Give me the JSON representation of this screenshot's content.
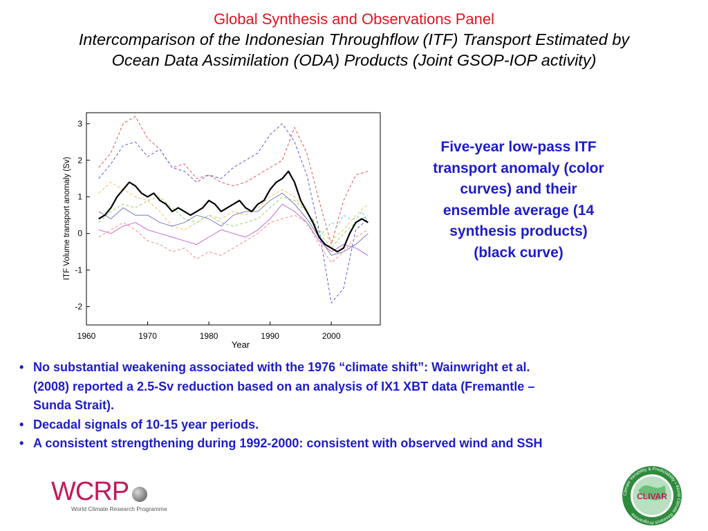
{
  "title": {
    "main": "Global Synthesis and Observations Panel",
    "sub_line1": "Intercomparison of the Indonesian Throughflow (ITF) Transport Estimated by",
    "sub_line2": "Ocean Data Assimilation (ODA) Products (Joint GSOP-IOP activity)"
  },
  "side_caption": "Five-year low-pass ITF transport anomaly (color curves) and their ensemble average (14 synthesis products) (black curve)",
  "bullets": [
    {
      "line1": "No substantial weakening associated with the 1976 “climate shift”: Wainwright et al.",
      "line2": "(2008) reported a 2.5-Sv reduction based on an analysis of IX1 XBT data (Fremantle –",
      "line3": "Sunda Strait)."
    },
    {
      "line1": "Decadal signals of 10-15 year periods."
    },
    {
      "line1": "A consistent strengthening during 1992-2000: consistent with observed wind and SSH"
    }
  ],
  "logos": {
    "wcrp_text": "WCRP",
    "wcrp_caption": "World Climate Research Programme",
    "clivar_text": "CLIVAR",
    "clivar_ring_text": "Climate Variability & Predictability • World Climate Research Programme"
  },
  "colors": {
    "title_red": "#e0141e",
    "body_blue": "#1c1cc8",
    "wcrp_magenta": "#c2185b",
    "clivar_green": "#2e8b3d"
  },
  "chart_data": {
    "type": "line",
    "xlabel": "Year",
    "ylabel": "ITF Volume transport anomaly (Sv)",
    "xlim": [
      1960,
      2008
    ],
    "ylim": [
      -2.5,
      3.3
    ],
    "xticks": [
      1960,
      1970,
      1980,
      1990,
      2000
    ],
    "yticks": [
      -2,
      -1,
      0,
      1,
      2,
      3
    ],
    "grid": false,
    "legend": "none",
    "series": [
      {
        "color": "#000000",
        "style": "solid",
        "width": 2.2,
        "x": [
          1962,
          1963,
          1964,
          1965,
          1966,
          1967,
          1968,
          1969,
          1970,
          1971,
          1972,
          1973,
          1974,
          1975,
          1976,
          1977,
          1978,
          1979,
          1980,
          1981,
          1982,
          1983,
          1984,
          1985,
          1986,
          1987,
          1988,
          1989,
          1990,
          1991,
          1992,
          1993,
          1994,
          1995,
          1996,
          1997,
          1998,
          1999,
          2000,
          2001,
          2002,
          2003,
          2004,
          2005,
          2006
        ],
        "values": [
          0.4,
          0.5,
          0.7,
          1.0,
          1.2,
          1.4,
          1.3,
          1.1,
          1.0,
          1.1,
          0.9,
          0.8,
          0.6,
          0.7,
          0.6,
          0.5,
          0.6,
          0.7,
          0.9,
          0.8,
          0.6,
          0.7,
          0.8,
          0.9,
          0.7,
          0.6,
          0.8,
          0.9,
          1.2,
          1.4,
          1.5,
          1.7,
          1.4,
          0.9,
          0.6,
          0.3,
          -0.1,
          -0.3,
          -0.4,
          -0.5,
          -0.4,
          0.0,
          0.3,
          0.4,
          0.3
        ]
      },
      {
        "color": "#e05555",
        "style": "dashed",
        "width": 1,
        "x": [
          1962,
          1964,
          1966,
          1968,
          1970,
          1972,
          1974,
          1976,
          1978,
          1980,
          1982,
          1984,
          1986,
          1988,
          1990,
          1992,
          1994,
          1996,
          1998,
          2000,
          2002,
          2004,
          2006
        ],
        "values": [
          1.8,
          2.2,
          3.0,
          3.2,
          2.6,
          2.3,
          1.8,
          1.9,
          1.5,
          1.6,
          1.4,
          1.3,
          1.4,
          1.6,
          1.8,
          2.0,
          2.9,
          2.2,
          0.9,
          -0.3,
          0.9,
          1.6,
          1.7
        ]
      },
      {
        "color": "#5a5ad8",
        "style": "dashed",
        "width": 1,
        "x": [
          1962,
          1964,
          1966,
          1968,
          1970,
          1972,
          1974,
          1976,
          1978,
          1980,
          1982,
          1984,
          1986,
          1988,
          1990,
          1992,
          1994,
          1996,
          1998,
          2000,
          2002,
          2004,
          2006
        ],
        "values": [
          1.5,
          1.9,
          2.4,
          2.5,
          2.1,
          2.3,
          1.8,
          1.7,
          1.4,
          1.6,
          1.5,
          1.8,
          2.0,
          2.2,
          2.7,
          3.0,
          2.5,
          1.6,
          0.1,
          -1.9,
          -1.5,
          0.1,
          0.4
        ]
      },
      {
        "color": "#c36ad1",
        "style": "solid",
        "width": 1,
        "x": [
          1962,
          1964,
          1966,
          1968,
          1970,
          1972,
          1974,
          1976,
          1978,
          1980,
          1982,
          1984,
          1986,
          1988,
          1990,
          1992,
          1994,
          1996,
          1998,
          2000,
          2002,
          2004,
          2006
        ],
        "values": [
          0.1,
          0.0,
          0.2,
          0.3,
          0.1,
          0.0,
          -0.1,
          -0.2,
          -0.3,
          -0.1,
          0.1,
          0.0,
          -0.1,
          0.1,
          0.4,
          0.8,
          0.6,
          0.3,
          -0.2,
          -0.5,
          -0.3,
          -0.4,
          -0.6
        ]
      },
      {
        "color": "#f5c04a",
        "style": "dashed",
        "width": 1,
        "x": [
          1962,
          1964,
          1966,
          1968,
          1970,
          1972,
          1974,
          1976,
          1978,
          1980,
          1982,
          1984,
          1986,
          1988,
          1990,
          1992,
          1994,
          1996,
          1998,
          2000,
          2002,
          2004,
          2006
        ],
        "values": [
          1.1,
          1.4,
          1.2,
          1.0,
          0.9,
          0.6,
          0.2,
          0.1,
          0.3,
          0.5,
          0.4,
          0.6,
          0.5,
          0.7,
          1.0,
          1.2,
          1.0,
          0.6,
          0.1,
          -0.2,
          0.1,
          0.5,
          0.8
        ]
      },
      {
        "color": "#8fd36a",
        "style": "dashed",
        "width": 1,
        "x": [
          1962,
          1964,
          1966,
          1968,
          1970,
          1972,
          1974,
          1976,
          1978,
          1980,
          1982,
          1984,
          1986,
          1988,
          1990,
          1992,
          1994,
          1996,
          1998,
          2000,
          2002,
          2004,
          2006
        ],
        "values": [
          0.3,
          0.6,
          0.8,
          0.7,
          0.9,
          1.0,
          0.7,
          0.4,
          0.3,
          0.5,
          0.3,
          0.2,
          0.3,
          0.4,
          0.7,
          1.0,
          0.9,
          0.6,
          0.0,
          -0.4,
          0.0,
          0.3,
          0.5
        ]
      },
      {
        "color": "#7a7ab8",
        "style": "solid",
        "width": 1,
        "x": [
          1962,
          1964,
          1966,
          1968,
          1970,
          1972,
          1974,
          1976,
          1978,
          1980,
          1982,
          1984,
          1986,
          1988,
          1990,
          1992,
          1994,
          1996,
          1998,
          2000,
          2002,
          2004,
          2006
        ],
        "values": [
          0.6,
          0.4,
          0.7,
          0.5,
          0.5,
          0.3,
          0.2,
          0.3,
          0.5,
          0.4,
          0.2,
          0.5,
          0.6,
          0.6,
          0.9,
          1.1,
          0.8,
          0.4,
          -0.1,
          -0.6,
          -0.5,
          -0.3,
          0.0
        ]
      },
      {
        "color": "#f08a8a",
        "style": "dashed",
        "width": 1,
        "x": [
          1962,
          1964,
          1966,
          1968,
          1970,
          1972,
          1974,
          1976,
          1978,
          1980,
          1982,
          1984,
          1986,
          1988,
          1990,
          1992,
          1994,
          1996,
          1998,
          2000,
          2002,
          2004,
          2006
        ],
        "values": [
          -0.1,
          0.1,
          0.3,
          0.1,
          -0.2,
          -0.3,
          -0.5,
          -0.4,
          -0.7,
          -0.5,
          -0.6,
          -0.4,
          -0.2,
          0.0,
          0.3,
          0.4,
          0.5,
          0.3,
          -0.3,
          -0.8,
          -0.5,
          -0.1,
          0.1
        ]
      },
      {
        "color": "#5bd6c9",
        "style": "dashed",
        "width": 1,
        "x": [
          1996,
          1997,
          1998,
          1999,
          2000,
          2001,
          2002,
          2003,
          2004,
          2005,
          2006
        ],
        "values": [
          0.2,
          0.4,
          -0.1,
          0.1,
          0.3,
          0.2,
          0.5,
          0.4,
          0.4,
          0.6,
          0.3
        ]
      }
    ]
  }
}
